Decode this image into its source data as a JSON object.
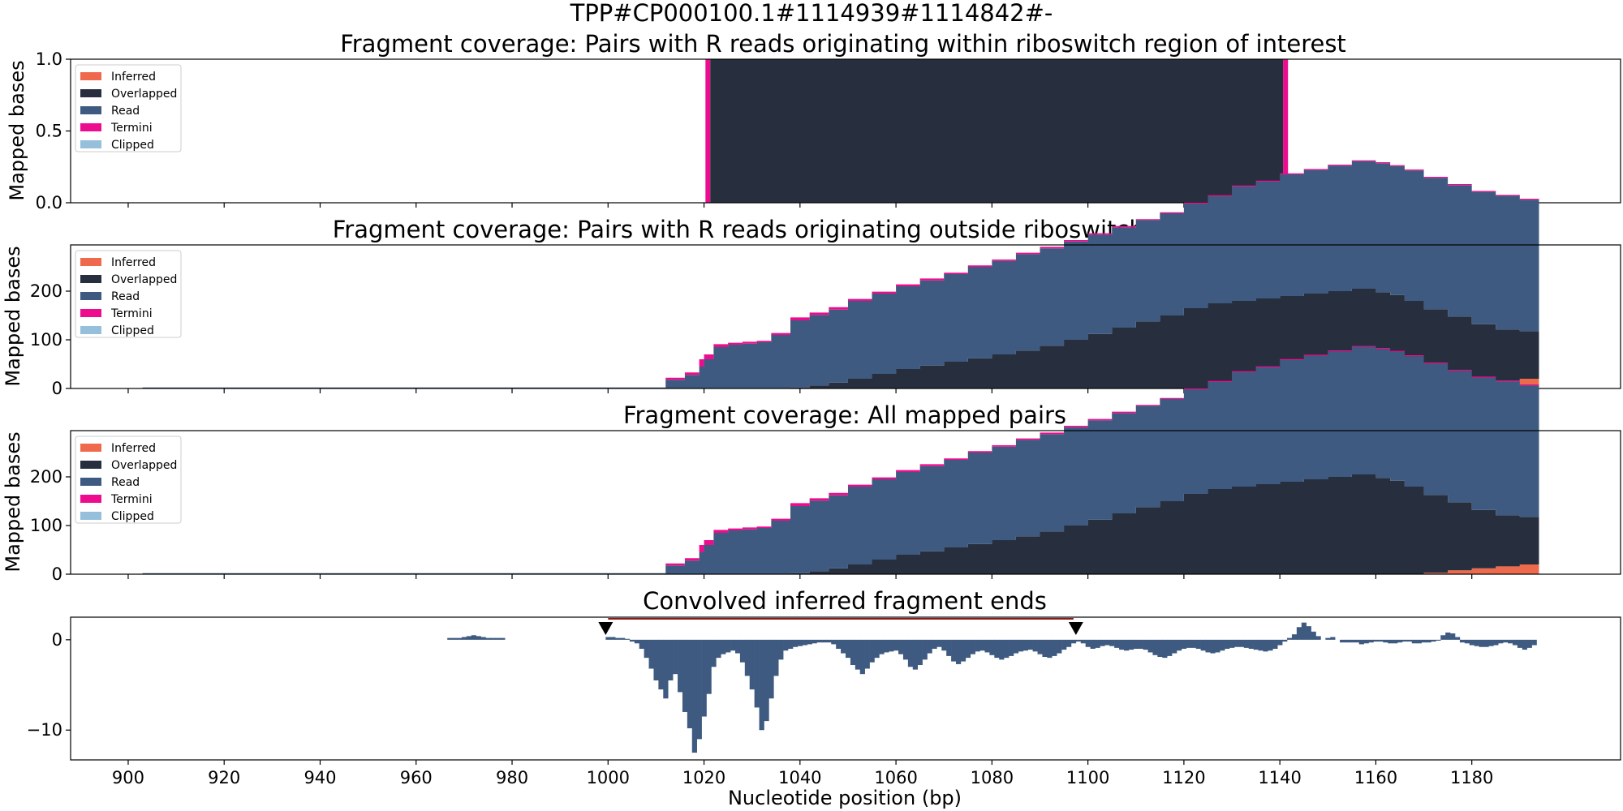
{
  "suptitle": "TPP#CP000100.1#1114939#1114842#-",
  "xlabel": "Nucleotide position (bp)",
  "x_ticks": [
    900,
    920,
    940,
    960,
    980,
    1000,
    1020,
    1040,
    1060,
    1080,
    1100,
    1120,
    1140,
    1160,
    1180
  ],
  "x_range": [
    888,
    1211
  ],
  "colors": {
    "Inferred": "#ef6a4c",
    "Overlapped": "#272f3f",
    "Read": "#3e5a80",
    "Termini": "#ee0c8e",
    "Clipped": "#96bfdb",
    "marker": "#000000",
    "bracket": "#8b1a1a"
  },
  "legend": {
    "placement": "upper left",
    "entries": [
      "Inferred",
      "Overlapped",
      "Read",
      "Termini",
      "Clipped"
    ]
  },
  "chart_data": [
    {
      "type": "area",
      "title": "Fragment coverage: Pairs with R reads originating within riboswitch region of interest",
      "ylabel": "Mapped bases",
      "ylim": [
        0,
        1.0
      ],
      "y_ticks": [
        "0.0",
        "0.5",
        "1.0"
      ],
      "bands": [
        {
          "series": "Termini",
          "x": [
            1020.3,
            1021.3
          ],
          "value": 1.0
        },
        {
          "series": "Overlapped",
          "x": [
            1021.3,
            1140.7
          ],
          "value": 1.0
        },
        {
          "series": "Termini",
          "x": [
            1140.7,
            1141.7
          ],
          "value": 1.0
        }
      ]
    },
    {
      "type": "area",
      "title": "Fragment coverage: Pairs with R reads originating outside riboswitch region of interest",
      "ylabel": "Mapped bases",
      "ylim": [
        0,
        295
      ],
      "y_ticks": [
        "0",
        "100",
        "200"
      ],
      "x": [
        903,
        1011,
        1012,
        1016,
        1019,
        1020,
        1022,
        1025,
        1028,
        1031,
        1034,
        1038,
        1042,
        1046,
        1050,
        1055,
        1060,
        1065,
        1070,
        1075,
        1080,
        1085,
        1090,
        1095,
        1100,
        1105,
        1110,
        1115,
        1120,
        1125,
        1130,
        1135,
        1140,
        1145,
        1150,
        1155,
        1160,
        1163,
        1166,
        1170,
        1175,
        1180,
        1185,
        1190,
        1194
      ],
      "series": [
        {
          "name": "Inferred",
          "values": [
            0,
            0,
            0,
            0,
            0,
            0,
            0,
            0,
            0,
            0,
            0,
            0,
            0,
            0,
            0,
            0,
            0,
            0,
            0,
            0,
            0,
            0,
            0,
            0,
            0,
            0,
            0,
            0,
            0,
            0,
            0,
            0,
            0,
            0,
            0,
            0,
            0,
            0,
            0,
            3,
            8,
            12,
            16,
            20,
            24
          ]
        },
        {
          "name": "Overlapped",
          "values": [
            0,
            0,
            0,
            0,
            0,
            0,
            0,
            0,
            0,
            0,
            0,
            2,
            6,
            12,
            20,
            30,
            40,
            47,
            55,
            62,
            70,
            78,
            88,
            100,
            112,
            125,
            138,
            150,
            165,
            175,
            180,
            185,
            190,
            195,
            200,
            205,
            198,
            192,
            180,
            160,
            140,
            120,
            105,
            98,
            97
          ]
        },
        {
          "name": "Read",
          "values": [
            2,
            2,
            18,
            28,
            45,
            60,
            85,
            90,
            92,
            95,
            110,
            138,
            145,
            150,
            160,
            165,
            170,
            175,
            180,
            188,
            192,
            198,
            200,
            202,
            204,
            206,
            208,
            210,
            215,
            220,
            235,
            240,
            250,
            254,
            258,
            262,
            265,
            265,
            268,
            270,
            270,
            272,
            275,
            270,
            270
          ]
        },
        {
          "name": "Termini",
          "values": [
            0,
            0,
            4,
            5,
            15,
            10,
            6,
            4,
            4,
            3,
            4,
            6,
            5,
            5,
            4,
            4,
            4,
            4,
            3,
            3,
            3,
            3,
            3,
            3,
            3,
            3,
            2,
            2,
            2,
            2,
            2,
            2,
            2,
            2,
            2,
            2,
            2,
            2,
            2,
            2,
            2,
            2,
            2,
            2,
            2
          ]
        },
        {
          "name": "Clipped",
          "values": [
            0,
            0,
            0,
            0,
            0,
            0,
            0,
            0,
            0,
            0,
            0,
            0,
            0,
            0,
            0,
            0,
            0,
            0,
            0,
            0,
            0,
            0,
            0,
            0,
            0,
            0,
            0,
            0,
            0,
            0,
            0,
            0,
            0,
            0,
            0,
            0,
            0,
            0,
            0,
            0,
            0,
            0,
            0,
            0,
            0
          ]
        }
      ]
    },
    {
      "type": "area",
      "title": "Fragment coverage: All mapped pairs",
      "ylabel": "Mapped bases",
      "ylim": [
        0,
        295
      ],
      "y_ticks": [
        "0",
        "100",
        "200"
      ],
      "x": [
        903,
        1011,
        1012,
        1016,
        1019,
        1020,
        1022,
        1025,
        1028,
        1031,
        1034,
        1038,
        1042,
        1046,
        1050,
        1055,
        1060,
        1065,
        1070,
        1075,
        1080,
        1085,
        1090,
        1095,
        1100,
        1105,
        1110,
        1115,
        1120,
        1125,
        1130,
        1135,
        1140,
        1145,
        1150,
        1155,
        1160,
        1163,
        1166,
        1170,
        1175,
        1180,
        1185,
        1190,
        1194
      ],
      "series": [
        {
          "name": "Inferred",
          "values": [
            0,
            0,
            0,
            0,
            0,
            0,
            0,
            0,
            0,
            0,
            0,
            0,
            0,
            0,
            0,
            0,
            0,
            0,
            0,
            0,
            0,
            0,
            0,
            0,
            0,
            0,
            0,
            0,
            0,
            0,
            0,
            0,
            0,
            0,
            0,
            0,
            0,
            0,
            0,
            3,
            8,
            12,
            16,
            20,
            24
          ]
        },
        {
          "name": "Overlapped",
          "values": [
            0,
            0,
            0,
            0,
            0,
            0,
            0,
            0,
            0,
            0,
            0,
            2,
            6,
            12,
            20,
            30,
            40,
            47,
            55,
            62,
            70,
            78,
            88,
            100,
            112,
            125,
            138,
            150,
            165,
            175,
            180,
            185,
            190,
            195,
            200,
            205,
            198,
            192,
            180,
            160,
            140,
            120,
            105,
            98,
            97
          ]
        },
        {
          "name": "Read",
          "values": [
            2,
            2,
            18,
            28,
            45,
            60,
            85,
            90,
            92,
            95,
            110,
            138,
            145,
            150,
            160,
            165,
            170,
            175,
            180,
            188,
            192,
            198,
            200,
            202,
            204,
            206,
            208,
            210,
            215,
            220,
            235,
            240,
            250,
            254,
            258,
            262,
            265,
            265,
            268,
            270,
            270,
            272,
            275,
            270,
            270
          ]
        },
        {
          "name": "Termini",
          "values": [
            0,
            0,
            4,
            5,
            15,
            10,
            6,
            4,
            4,
            3,
            4,
            6,
            5,
            5,
            4,
            4,
            4,
            4,
            3,
            3,
            3,
            3,
            3,
            3,
            3,
            3,
            2,
            2,
            2,
            2,
            2,
            2,
            2,
            2,
            2,
            2,
            2,
            2,
            2,
            2,
            2,
            2,
            2,
            2,
            2
          ]
        },
        {
          "name": "Clipped",
          "values": [
            0,
            0,
            0,
            0,
            0,
            0,
            0,
            0,
            0,
            0,
            0,
            0,
            0,
            0,
            0,
            0,
            0,
            0,
            0,
            0,
            0,
            0,
            0,
            0,
            0,
            0,
            0,
            0,
            0,
            0,
            0,
            0,
            0,
            0,
            0,
            0,
            0,
            0,
            0,
            0,
            0,
            0,
            0,
            0,
            0
          ]
        }
      ]
    },
    {
      "type": "bar",
      "title": "Convolved inferred fragment ends",
      "ylim": [
        -13.3,
        2.5
      ],
      "y_ticks": [
        "0",
        "−10"
      ],
      "markers_x": [
        999.5,
        1097.5
      ],
      "bracket_x": [
        1000,
        1097
      ],
      "x": [
        967,
        968,
        969,
        970,
        971,
        972,
        973,
        974,
        975,
        976,
        977,
        978,
        979,
        980,
        981,
        982,
        983,
        984,
        985,
        986,
        987,
        988,
        989,
        990,
        991,
        992,
        993,
        994,
        995,
        996,
        997,
        998,
        999,
        1000,
        1001,
        1002,
        1003,
        1004,
        1005,
        1006,
        1007,
        1008,
        1009,
        1010,
        1011,
        1012,
        1013,
        1014,
        1015,
        1016,
        1017,
        1018,
        1019,
        1020,
        1021,
        1022,
        1023,
        1024,
        1025,
        1026,
        1027,
        1028,
        1029,
        1030,
        1031,
        1032,
        1033,
        1034,
        1035,
        1036,
        1037,
        1038,
        1039,
        1040,
        1041,
        1042,
        1043,
        1044,
        1045,
        1046,
        1047,
        1048,
        1049,
        1050,
        1051,
        1052,
        1053,
        1054,
        1055,
        1056,
        1057,
        1058,
        1059,
        1060,
        1061,
        1062,
        1063,
        1064,
        1065,
        1066,
        1067,
        1068,
        1069,
        1070,
        1071,
        1072,
        1073,
        1074,
        1075,
        1076,
        1077,
        1078,
        1079,
        1080,
        1081,
        1082,
        1083,
        1084,
        1085,
        1086,
        1087,
        1088,
        1089,
        1090,
        1091,
        1092,
        1093,
        1094,
        1095,
        1096,
        1097,
        1098,
        1099,
        1100,
        1101,
        1102,
        1103,
        1104,
        1105,
        1106,
        1107,
        1108,
        1109,
        1110,
        1111,
        1112,
        1113,
        1114,
        1115,
        1116,
        1117,
        1118,
        1119,
        1120,
        1121,
        1122,
        1123,
        1124,
        1125,
        1126,
        1127,
        1128,
        1129,
        1130,
        1131,
        1132,
        1133,
        1134,
        1135,
        1136,
        1137,
        1138,
        1139,
        1140,
        1141,
        1142,
        1143,
        1144,
        1145,
        1146,
        1147,
        1148,
        1149,
        1150,
        1151,
        1152,
        1153,
        1154,
        1155,
        1156,
        1157,
        1158,
        1159,
        1160,
        1161,
        1162,
        1163,
        1164,
        1165,
        1166,
        1167,
        1168,
        1169,
        1170,
        1171,
        1172,
        1173,
        1174,
        1175,
        1176,
        1177,
        1178,
        1179,
        1180,
        1181,
        1182,
        1183,
        1184,
        1185,
        1186,
        1187,
        1188,
        1189,
        1190,
        1191,
        1192,
        1193
      ],
      "values": [
        0.2,
        0.2,
        0.2,
        0.3,
        0.4,
        0.5,
        0.4,
        0.3,
        0.2,
        0.2,
        0.2,
        0.2,
        0,
        0,
        0,
        0,
        0,
        0,
        0,
        0,
        0,
        0,
        0,
        0,
        0,
        0,
        0,
        0,
        0,
        0,
        0,
        0,
        0,
        0.3,
        0.3,
        0.2,
        0.2,
        0.1,
        -0.2,
        -0.4,
        -1.0,
        -2.0,
        -3.2,
        -4.5,
        -5.5,
        -6.5,
        -4.5,
        -3.8,
        -5.8,
        -8.0,
        -9.8,
        -12.5,
        -11.0,
        -8.5,
        -6.0,
        -3.0,
        -2.0,
        -1.6,
        -1.4,
        -1.2,
        -1.5,
        -2.5,
        -4.0,
        -5.5,
        -7.5,
        -10.0,
        -9.0,
        -6.5,
        -4.0,
        -2.2,
        -1.2,
        -1.0,
        -0.8,
        -0.7,
        -0.6,
        -0.5,
        -0.4,
        -0.3,
        -0.3,
        -0.3,
        -0.5,
        -1.0,
        -1.5,
        -2.0,
        -2.8,
        -3.3,
        -3.8,
        -3.2,
        -2.5,
        -2.0,
        -1.6,
        -1.4,
        -1.3,
        -1.2,
        -1.6,
        -2.2,
        -3.0,
        -3.3,
        -2.8,
        -2.2,
        -1.5,
        -1.0,
        -0.8,
        -1.2,
        -1.8,
        -2.4,
        -2.7,
        -2.4,
        -2.0,
        -1.6,
        -1.3,
        -1.2,
        -1.4,
        -1.7,
        -2.0,
        -2.2,
        -2.0,
        -1.8,
        -1.5,
        -1.3,
        -1.2,
        -1.1,
        -1.3,
        -1.6,
        -1.9,
        -2.0,
        -1.8,
        -1.5,
        -1.1,
        -0.8,
        -0.4,
        -0.2,
        -0.4,
        -0.8,
        -1.0,
        -0.9,
        -0.7,
        -0.6,
        -0.7,
        -0.9,
        -1.1,
        -1.2,
        -1.1,
        -1.0,
        -1.0,
        -1.1,
        -1.4,
        -1.7,
        -1.9,
        -2.0,
        -1.8,
        -1.5,
        -1.2,
        -1.0,
        -0.9,
        -0.9,
        -1.0,
        -1.2,
        -1.4,
        -1.5,
        -1.4,
        -1.2,
        -1.0,
        -0.9,
        -0.8,
        -0.8,
        -0.9,
        -1.0,
        -1.1,
        -1.2,
        -1.3,
        -1.2,
        -1.0,
        -0.6,
        -0.2,
        0.2,
        0.6,
        1.4,
        1.9,
        1.5,
        0.9,
        0.4,
        0,
        0.2,
        0.3,
        0,
        -0.3,
        -0.3,
        -0.3,
        -0.3,
        -0.5,
        -0.4,
        -0.3,
        -0.2,
        -0.2,
        -0.3,
        -0.4,
        -0.4,
        -0.3,
        -0.2,
        -0.2,
        -0.4,
        -0.4,
        -0.3,
        -0.3,
        -0.2,
        -0.1,
        0.5,
        0.8,
        0.7,
        0.3,
        -0.3,
        -0.4,
        -0.6,
        -0.7,
        -0.8,
        -0.8,
        -0.7,
        -0.6,
        -0.4,
        -0.3,
        -0.4,
        -0.6,
        -0.9,
        -1.1,
        -0.9,
        -0.6
      ]
    }
  ]
}
